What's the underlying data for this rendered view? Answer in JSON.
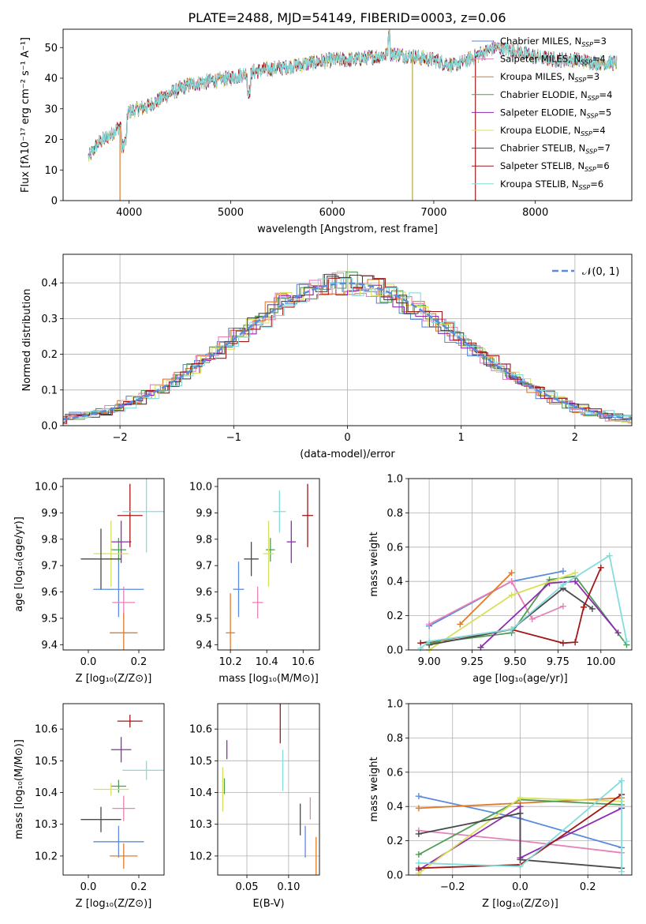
{
  "figure_title": "PLATE=2488, MJD=54149, FIBERID=0003, z=0.06",
  "series_colors": {
    "Chabrier MILES": "#5b8bde",
    "Salpeter MILES": "#e582b8",
    "Kroupa MILES": "#e07b2b",
    "Chabrier ELODIE": "#4f9d55",
    "Salpeter ELODIE": "#8e2bb0",
    "Kroupa ELODIE": "#d8e05a",
    "Chabrier STELIB": "#4a4a4a",
    "Salpeter STELIB": "#a01818",
    "Kroupa STELIB": "#84dcdc"
  },
  "chart_data": [
    {
      "id": "spectrum",
      "type": "line",
      "xlabel": "wavelength [Angstrom, rest frame]",
      "ylabel": "Flux [fλ10⁻¹⁷ erg cm⁻² s⁻¹ A⁻¹]",
      "xlim": [
        3350,
        8950
      ],
      "ylim": [
        0,
        56
      ],
      "xticks": [
        4000,
        5000,
        6000,
        7000,
        8000
      ],
      "yticks": [
        0,
        10,
        20,
        30,
        40,
        50
      ],
      "legend_position": "top-right",
      "legend": [
        "Chabrier MILES, N_SSP=3",
        "Salpeter MILES, N_SSP=4",
        "Kroupa MILES, N_SSP=3",
        "Chabrier ELODIE, N_SSP=4",
        "Salpeter ELODIE, N_SSP=5",
        "Kroupa ELODIE, N_SSP=4",
        "Chabrier STELIB, N_SSP=7",
        "Salpeter STELIB, N_SSP=6",
        "Kroupa STELIB, N_SSP=6"
      ],
      "continuum": {
        "x": [
          3600,
          3700,
          3800,
          3900,
          4000,
          4200,
          4400,
          4600,
          4800,
          5000,
          5200,
          5400,
          5600,
          5800,
          6000,
          6200,
          6400,
          6600,
          6800,
          7000,
          7200,
          7400,
          7600,
          7800,
          8000,
          8200,
          8400,
          8600,
          8800
        ],
        "y": [
          14,
          19,
          21,
          24,
          29,
          31,
          35,
          38,
          39,
          40,
          42,
          43,
          44,
          45,
          46,
          46,
          47,
          48,
          47,
          46,
          44,
          47,
          50,
          49,
          47,
          46,
          46,
          45,
          45
        ]
      },
      "dropouts": [
        {
          "x": 3910,
          "y": 0
        },
        {
          "x": 6790,
          "y": 0
        },
        {
          "x": 7410,
          "y": 0
        }
      ]
    },
    {
      "id": "residuals",
      "type": "histogram",
      "xlabel": "(data-model)/error",
      "ylabel": "Normed distribution",
      "xlim": [
        -2.5,
        2.5
      ],
      "ylim": [
        0,
        0.48
      ],
      "xticks": [
        -2,
        -1,
        0,
        1,
        2
      ],
      "yticks": [
        0.0,
        0.1,
        0.2,
        0.3,
        0.4
      ],
      "grid": true,
      "legend_position": "top-right",
      "legend": [
        "𝒩(0, 1)"
      ],
      "reference_curve": "normal pdf, mean 0, sigma 1"
    },
    {
      "id": "age_vs_Z",
      "type": "errorbar",
      "xlabel": "Z [log₁₀(Z/Z⊙)]",
      "ylabel": "age  [log₁₀(age/yr)]",
      "xlim": [
        -0.1,
        0.3
      ],
      "ylim": [
        9.38,
        10.03
      ],
      "xticks": [
        0.0,
        0.2
      ],
      "yticks": [
        9.4,
        9.5,
        9.6,
        9.7,
        9.8,
        9.9,
        10.0
      ],
      "points": [
        {
          "series": "Chabrier MILES",
          "x": 0.12,
          "xerr": 0.2,
          "y": 9.61,
          "yerr": 0.21
        },
        {
          "series": "Salpeter MILES",
          "x": 0.14,
          "xerr": 0.09,
          "y": 9.56,
          "yerr": 0.12
        },
        {
          "series": "Kroupa MILES",
          "x": 0.14,
          "xerr": 0.11,
          "y": 9.445,
          "yerr": 0.15
        },
        {
          "series": "Chabrier ELODIE",
          "x": 0.12,
          "xerr": 0.06,
          "y": 9.76,
          "yerr": 0.09
        },
        {
          "series": "Salpeter ELODIE",
          "x": 0.13,
          "xerr": 0.08,
          "y": 9.79,
          "yerr": 0.16
        },
        {
          "series": "Kroupa ELODIE",
          "x": 0.09,
          "xerr": 0.14,
          "y": 9.745,
          "yerr": 0.25
        },
        {
          "series": "Chabrier STELIB",
          "x": 0.05,
          "xerr": 0.16,
          "y": 9.725,
          "yerr": 0.23
        },
        {
          "series": "Salpeter STELIB",
          "x": 0.165,
          "xerr": 0.1,
          "y": 9.89,
          "yerr": 0.24
        },
        {
          "series": "Kroupa STELIB",
          "x": 0.23,
          "xerr": 0.19,
          "y": 9.905,
          "yerr": 0.31
        }
      ]
    },
    {
      "id": "age_vs_mass",
      "type": "errorbar",
      "xlabel": "mass [log₁₀(M/M⊙)]",
      "ylabel": "",
      "xlim": [
        10.13,
        10.69
      ],
      "ylim": [
        9.38,
        10.03
      ],
      "xticks": [
        10.2,
        10.4,
        10.6
      ],
      "yticks": [
        9.4,
        9.5,
        9.6,
        9.7,
        9.8,
        9.9,
        10.0
      ],
      "points": [
        {
          "series": "Chabrier MILES",
          "x": 10.245,
          "xerr": 0.06,
          "y": 9.61,
          "yerr": 0.21
        },
        {
          "series": "Salpeter MILES",
          "x": 10.35,
          "xerr": 0.06,
          "y": 9.56,
          "yerr": 0.12
        },
        {
          "series": "Kroupa MILES",
          "x": 10.2,
          "xerr": 0.05,
          "y": 9.445,
          "yerr": 0.3
        },
        {
          "series": "Chabrier ELODIE",
          "x": 10.42,
          "xerr": 0.05,
          "y": 9.76,
          "yerr": 0.09
        },
        {
          "series": "Salpeter ELODIE",
          "x": 10.535,
          "xerr": 0.05,
          "y": 9.79,
          "yerr": 0.16
        },
        {
          "series": "Kroupa ELODIE",
          "x": 10.41,
          "xerr": 0.06,
          "y": 9.745,
          "yerr": 0.25
        },
        {
          "series": "Chabrier STELIB",
          "x": 10.315,
          "xerr": 0.08,
          "y": 9.725,
          "yerr": 0.13
        },
        {
          "series": "Salpeter STELIB",
          "x": 10.625,
          "xerr": 0.06,
          "y": 9.89,
          "yerr": 0.24
        },
        {
          "series": "Kroupa STELIB",
          "x": 10.47,
          "xerr": 0.07,
          "y": 9.905,
          "yerr": 0.16
        }
      ]
    },
    {
      "id": "weight_vs_age",
      "type": "line",
      "xlabel": "age  [log₁₀(age/yr)]",
      "ylabel": "mass weight",
      "xlim": [
        8.88,
        10.18
      ],
      "ylim": [
        0,
        1
      ],
      "xticks": [
        9.0,
        9.25,
        9.5,
        9.75,
        10.0
      ],
      "yticks": [
        0.0,
        0.2,
        0.4,
        0.6,
        0.8,
        1.0
      ],
      "grid": true,
      "series": [
        {
          "name": "Chabrier MILES",
          "x": [
            9.0,
            9.48,
            9.78
          ],
          "y": [
            0.14,
            0.4,
            0.46
          ]
        },
        {
          "name": "Salpeter MILES",
          "x": [
            9.0,
            9.48,
            9.6,
            9.78
          ],
          "y": [
            0.15,
            0.4,
            0.18,
            0.255
          ]
        },
        {
          "name": "Kroupa MILES",
          "x": [
            9.18,
            9.48
          ],
          "y": [
            0.15,
            0.45
          ]
        },
        {
          "name": "Chabrier ELODIE",
          "x": [
            9.0,
            9.48,
            9.7,
            9.85,
            10.15
          ],
          "y": [
            0.04,
            0.1,
            0.41,
            0.43,
            0.03
          ]
        },
        {
          "name": "Salpeter ELODIE",
          "x": [
            9.3,
            9.7,
            9.85,
            10.1
          ],
          "y": [
            0.015,
            0.39,
            0.4,
            0.1
          ]
        },
        {
          "name": "Kroupa ELODIE",
          "x": [
            9.0,
            9.48,
            9.85
          ],
          "y": [
            0.0,
            0.32,
            0.45
          ]
        },
        {
          "name": "Chabrier STELIB",
          "x": [
            9.0,
            9.48,
            9.78,
            9.95
          ],
          "y": [
            0.03,
            0.12,
            0.36,
            0.24
          ]
        },
        {
          "name": "Salpeter STELIB",
          "x": [
            8.95,
            9.48,
            9.78,
            9.85,
            9.9,
            10.0
          ],
          "y": [
            0.04,
            0.12,
            0.04,
            0.045,
            0.25,
            0.48
          ]
        },
        {
          "name": "Kroupa STELIB",
          "x": [
            8.95,
            9.0,
            9.48,
            9.78,
            10.05,
            10.15
          ],
          "y": [
            0.01,
            0.05,
            0.12,
            0.38,
            0.55,
            0.05
          ]
        }
      ]
    },
    {
      "id": "mass_vs_Z",
      "type": "errorbar",
      "xlabel": "Z [log₁₀(Z/Z⊙)]",
      "ylabel": "mass [log₁₀(M/M⊙)]",
      "xlim": [
        -0.1,
        0.3
      ],
      "ylim": [
        10.14,
        10.68
      ],
      "xticks": [
        0.0,
        0.2
      ],
      "yticks": [
        10.2,
        10.3,
        10.4,
        10.5,
        10.6
      ],
      "points": [
        {
          "series": "Chabrier MILES",
          "x": 0.12,
          "xerr": 0.2,
          "y": 10.245,
          "yerr": 0.1
        },
        {
          "series": "Salpeter MILES",
          "x": 0.14,
          "xerr": 0.09,
          "y": 10.35,
          "yerr": 0.08
        },
        {
          "series": "Kroupa MILES",
          "x": 0.14,
          "xerr": 0.11,
          "y": 10.2,
          "yerr": 0.08
        },
        {
          "series": "Chabrier ELODIE",
          "x": 0.12,
          "xerr": 0.06,
          "y": 10.42,
          "yerr": 0.04
        },
        {
          "series": "Salpeter ELODIE",
          "x": 0.13,
          "xerr": 0.08,
          "y": 10.535,
          "yerr": 0.08
        },
        {
          "series": "Kroupa ELODIE",
          "x": 0.09,
          "xerr": 0.14,
          "y": 10.41,
          "yerr": 0.04
        },
        {
          "series": "Chabrier STELIB",
          "x": 0.05,
          "xerr": 0.16,
          "y": 10.315,
          "yerr": 0.08
        },
        {
          "series": "Salpeter STELIB",
          "x": 0.165,
          "xerr": 0.1,
          "y": 10.625,
          "yerr": 0.04
        },
        {
          "series": "Kroupa STELIB",
          "x": 0.23,
          "xerr": 0.19,
          "y": 10.47,
          "yerr": 0.06
        }
      ]
    },
    {
      "id": "mass_vs_ebv",
      "type": "errorbar",
      "xlabel": "E(B-V)",
      "ylabel": "",
      "xlim": [
        0.015,
        0.137
      ],
      "ylim": [
        10.14,
        10.68
      ],
      "xticks": [
        0.05,
        0.1
      ],
      "yticks": [
        10.2,
        10.3,
        10.4,
        10.5,
        10.6
      ],
      "grid": true,
      "points": [
        {
          "series": "Chabrier MILES",
          "x": 0.12,
          "y": 10.245,
          "yerr": 0.1
        },
        {
          "series": "Salpeter MILES",
          "x": 0.126,
          "y": 10.35,
          "yerr": 0.07
        },
        {
          "series": "Kroupa MILES",
          "x": 0.133,
          "y": 10.2,
          "yerr": 0.12
        },
        {
          "series": "Chabrier ELODIE",
          "x": 0.023,
          "y": 10.42,
          "yerr": 0.05
        },
        {
          "series": "Salpeter ELODIE",
          "x": 0.026,
          "y": 10.535,
          "yerr": 0.06
        },
        {
          "series": "Kroupa ELODIE",
          "x": 0.021,
          "y": 10.41,
          "yerr": 0.14
        },
        {
          "series": "Chabrier STELIB",
          "x": 0.114,
          "y": 10.315,
          "yerr": 0.1
        },
        {
          "series": "Salpeter STELIB",
          "x": 0.09,
          "y": 10.625,
          "yerr": 0.14
        },
        {
          "series": "Kroupa STELIB",
          "x": 0.093,
          "y": 10.47,
          "yerr": 0.13
        }
      ]
    },
    {
      "id": "weight_vs_Z",
      "type": "line",
      "xlabel": "Z [log₁₀(Z/Z⊙)]",
      "ylabel": "mass weight",
      "xlim": [
        -0.33,
        0.33
      ],
      "ylim": [
        0,
        1
      ],
      "xticks": [
        -0.2,
        0.0,
        0.2
      ],
      "yticks": [
        0.0,
        0.2,
        0.4,
        0.6,
        0.8,
        1.0
      ],
      "grid": true,
      "series": [
        {
          "name": "Chabrier MILES",
          "x": [
            -0.3,
            0.0,
            0.3
          ],
          "y": [
            0.46,
            0.33,
            0.16
          ]
        },
        {
          "name": "Salpeter MILES",
          "x": [
            -0.3,
            0.0,
            0.3
          ],
          "y": [
            0.26,
            0.2,
            0.13
          ]
        },
        {
          "name": "Kroupa MILES",
          "x": [
            -0.3,
            0.0,
            0.3
          ],
          "y": [
            0.39,
            0.42,
            0.45
          ]
        },
        {
          "name": "Chabrier ELODIE",
          "x": [
            -0.3,
            0.0,
            0.3
          ],
          "y": [
            0.12,
            0.44,
            0.41
          ]
        },
        {
          "name": "Salpeter ELODIE",
          "x": [
            -0.3,
            0.0,
            0.0,
            0.3
          ],
          "y": [
            0.03,
            0.4,
            0.1,
            0.39
          ]
        },
        {
          "name": "Kroupa ELODIE",
          "x": [
            -0.3,
            0.0,
            0.3
          ],
          "y": [
            0.01,
            0.45,
            0.43
          ]
        },
        {
          "name": "Chabrier STELIB",
          "x": [
            -0.3,
            0.0,
            0.0,
            0.3
          ],
          "y": [
            0.24,
            0.36,
            0.09,
            0.04
          ]
        },
        {
          "name": "Salpeter STELIB",
          "x": [
            -0.3,
            0.0,
            0.3
          ],
          "y": [
            0.04,
            0.06,
            0.47
          ]
        },
        {
          "name": "Kroupa STELIB",
          "x": [
            -0.3,
            0.0,
            0.3,
            0.3
          ],
          "y": [
            0.07,
            0.05,
            0.55,
            0.02
          ]
        }
      ]
    }
  ]
}
